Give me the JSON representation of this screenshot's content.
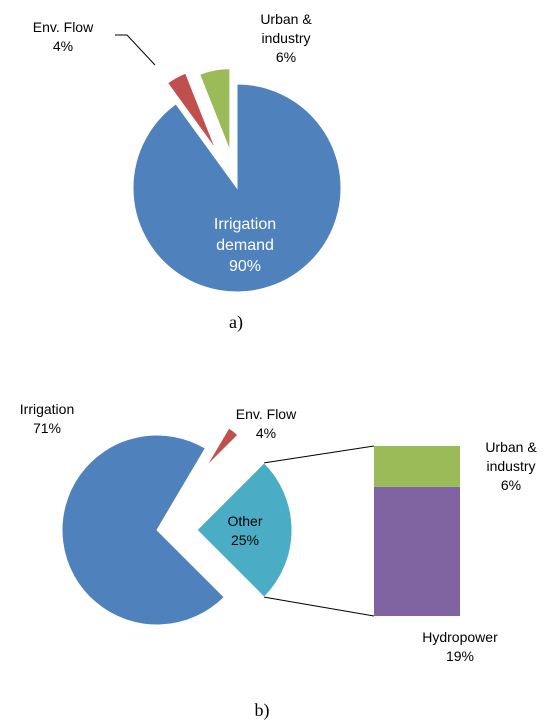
{
  "chart_data": [
    {
      "type": "pie",
      "caption": "a)",
      "categories": [
        "Irrigation demand",
        "Env. Flow",
        "Urban & industry"
      ],
      "values": [
        90,
        4,
        6
      ],
      "value_labels": [
        "90%",
        "4%",
        "6%"
      ],
      "colors": [
        "#4f81bd",
        "#c0504d",
        "#9bbb59"
      ]
    },
    {
      "type": "bar_of_pie",
      "caption": "b)",
      "categories": [
        "Irrigation",
        "Env. Flow",
        "Other"
      ],
      "values": [
        71,
        4,
        25
      ],
      "value_labels": [
        "71%",
        "4%",
        "25%"
      ],
      "colors": [
        "#4f81bd",
        "#c0504d",
        "#4bacc6"
      ],
      "bar": {
        "categories": [
          "Urban & industry",
          "Hydropower"
        ],
        "values": [
          6,
          19
        ],
        "value_labels": [
          "6%",
          "19%"
        ],
        "colors": [
          "#9bbb59",
          "#8064a2"
        ]
      }
    }
  ]
}
